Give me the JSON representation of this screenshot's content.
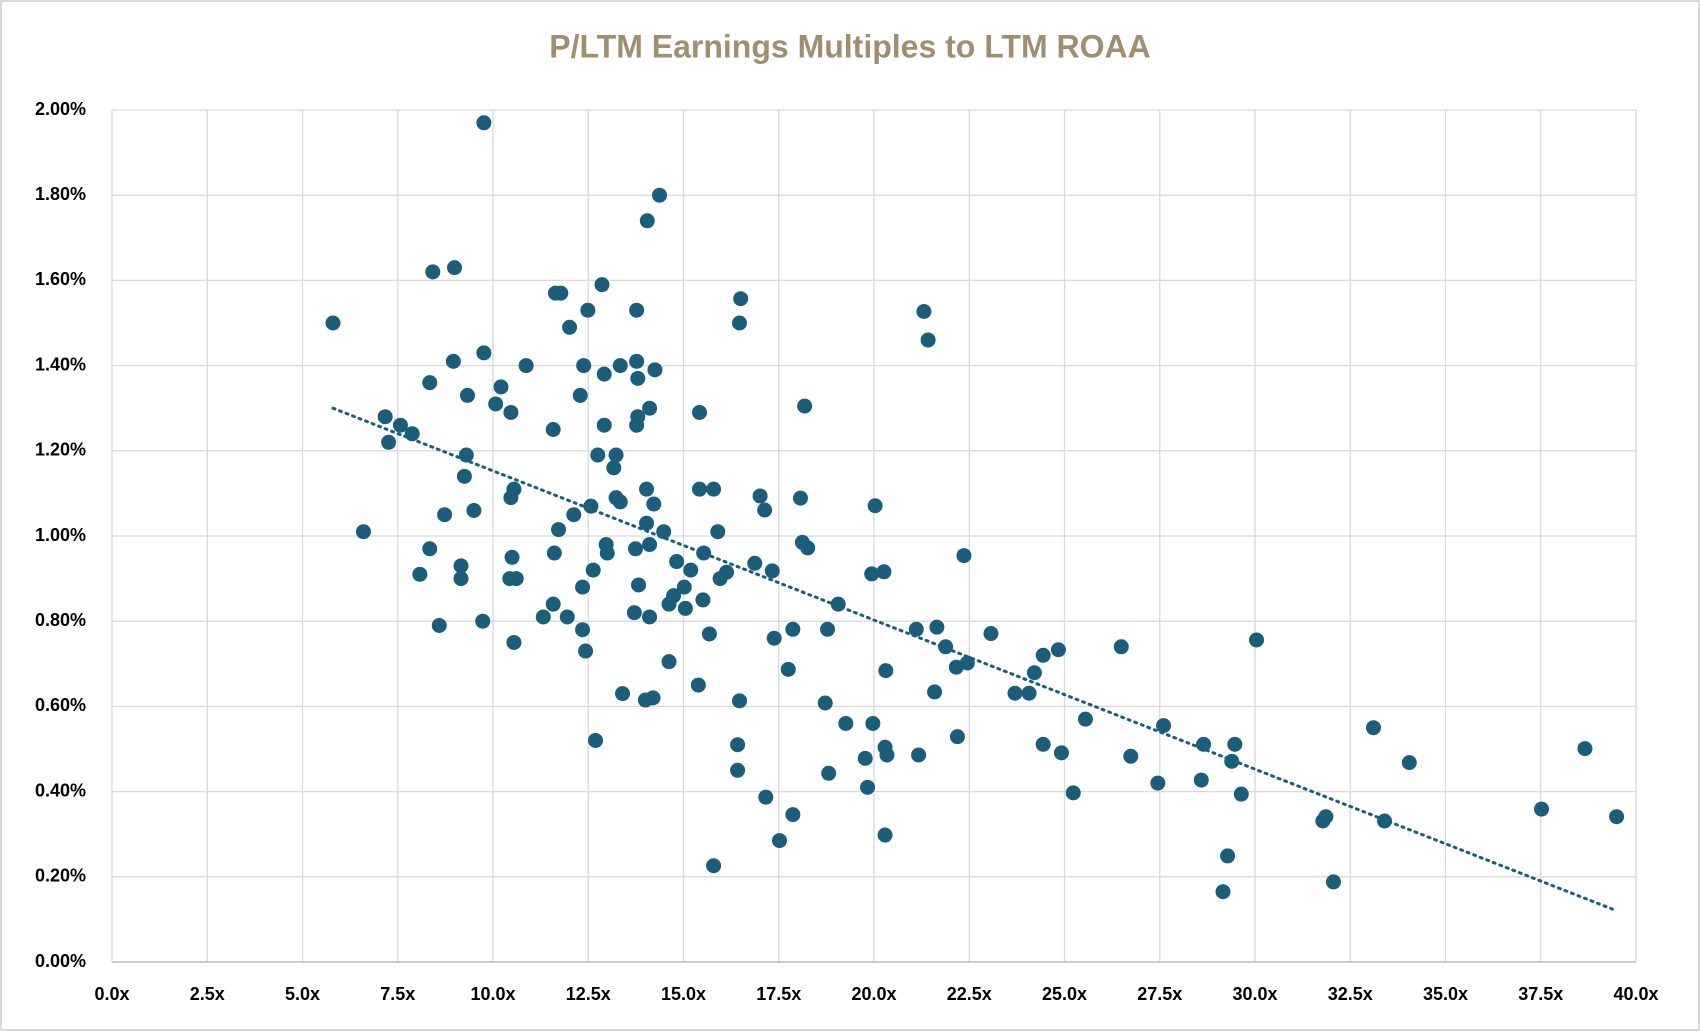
{
  "chart_data": {
    "type": "scatter",
    "title": "P/LTM Earnings Multiples to LTM ROAA",
    "xlim": [
      0,
      40
    ],
    "ylim": [
      0,
      2
    ],
    "grid": true,
    "xticks": [
      {
        "value": 0,
        "label": "0.0x"
      },
      {
        "value": 2.5,
        "label": "2.5x"
      },
      {
        "value": 5,
        "label": "5.0x"
      },
      {
        "value": 7.5,
        "label": "7.5x"
      },
      {
        "value": 10,
        "label": "10.0x"
      },
      {
        "value": 12.5,
        "label": "12.5x"
      },
      {
        "value": 15,
        "label": "15.0x"
      },
      {
        "value": 17.5,
        "label": "17.5x"
      },
      {
        "value": 20,
        "label": "20.0x"
      },
      {
        "value": 22.5,
        "label": "22.5x"
      },
      {
        "value": 25,
        "label": "25.0x"
      },
      {
        "value": 27.5,
        "label": "27.5x"
      },
      {
        "value": 30,
        "label": "30.0x"
      },
      {
        "value": 32.5,
        "label": "32.5x"
      },
      {
        "value": 35,
        "label": "35.0x"
      },
      {
        "value": 37.5,
        "label": "37.5x"
      },
      {
        "value": 40,
        "label": "40.0x"
      }
    ],
    "yticks": [
      {
        "value": 0,
        "label": "0.00%"
      },
      {
        "value": 0.2,
        "label": "0.20%"
      },
      {
        "value": 0.4,
        "label": "0.40%"
      },
      {
        "value": 0.6,
        "label": "0.60%"
      },
      {
        "value": 0.8,
        "label": "0.80%"
      },
      {
        "value": 1.0,
        "label": "1.00%"
      },
      {
        "value": 1.2,
        "label": "1.20%"
      },
      {
        "value": 1.4,
        "label": "1.40%"
      },
      {
        "value": 1.6,
        "label": "1.60%"
      },
      {
        "value": 1.8,
        "label": "1.80%"
      },
      {
        "value": 2.0,
        "label": "2.00%"
      }
    ],
    "series": [
      {
        "color": "#1b5e7b",
        "x": [
          5.8,
          6.6,
          7.17,
          7.26,
          7.57,
          7.88,
          8.08,
          8.34,
          8.34,
          8.42,
          8.59,
          8.73,
          8.96,
          8.99,
          9.16,
          9.16,
          9.25,
          9.3,
          9.33,
          9.5,
          9.73,
          9.76,
          9.76,
          10.07,
          10.21,
          10.44,
          10.47,
          10.47,
          10.5,
          10.55,
          10.55,
          10.61,
          10.87,
          11.32,
          11.58,
          11.61,
          11.58,
          11.64,
          11.78,
          11.72,
          11.95,
          12.01,
          12.12,
          12.29,
          12.35,
          12.35,
          12.38,
          12.43,
          12.49,
          12.57,
          12.63,
          12.69,
          12.75,
          12.86,
          12.92,
          12.92,
          12.97,
          13.0,
          13.17,
          13.23,
          13.23,
          13.34,
          13.34,
          13.4,
          13.71,
          13.74,
          13.77,
          13.77,
          13.8,
          13.8,
          13.77,
          13.82,
          14.0,
          14.03,
          14.03,
          14.05,
          14.11,
          14.11,
          14.11,
          14.2,
          14.22,
          14.25,
          14.37,
          14.48,
          14.62,
          14.62,
          14.74,
          14.82,
          15.02,
          15.05,
          15.19,
          15.39,
          15.42,
          15.42,
          15.51,
          15.53,
          15.68,
          15.79,
          15.79,
          15.9,
          15.96,
          16.13,
          16.42,
          16.42,
          16.47,
          16.5,
          16.47,
          16.87,
          17.01,
          17.13,
          17.16,
          17.33,
          17.38,
          17.52,
          17.75,
          17.87,
          17.87,
          18.07,
          18.12,
          18.18,
          18.26,
          18.72,
          18.78,
          18.81,
          19.06,
          19.26,
          19.77,
          19.83,
          19.97,
          19.94,
          20.03,
          20.26,
          20.29,
          20.34,
          20.29,
          20.31,
          21.11,
          21.17,
          21.31,
          21.42,
          21.59,
          21.65,
          21.88,
          22.16,
          22.19,
          22.36,
          22.45,
          23.07,
          23.7,
          24.07,
          24.21,
          24.44,
          24.44,
          24.84,
          24.92,
          25.23,
          25.55,
          26.49,
          26.74,
          27.45,
          27.6,
          28.59,
          28.65,
          29.16,
          29.28,
          29.39,
          29.47,
          29.64,
          30.04,
          31.78,
          31.86,
          32.06,
          33.11,
          33.4,
          34.05,
          37.52,
          38.66,
          39.49
        ],
        "y": [
          1.5,
          1.01,
          1.28,
          1.22,
          1.26,
          1.24,
          0.91,
          1.36,
          0.97,
          1.62,
          0.79,
          1.05,
          1.41,
          1.63,
          0.93,
          0.9,
          1.14,
          1.19,
          1.33,
          1.06,
          0.8,
          1.43,
          1.97,
          1.31,
          1.35,
          0.9,
          1.29,
          1.09,
          0.95,
          1.11,
          0.75,
          0.9,
          1.4,
          0.81,
          1.25,
          0.96,
          0.84,
          1.57,
          1.57,
          1.015,
          0.81,
          1.49,
          1.05,
          1.33,
          0.88,
          0.78,
          1.4,
          0.73,
          1.53,
          1.07,
          0.92,
          0.52,
          1.19,
          1.59,
          1.38,
          1.26,
          0.98,
          0.96,
          1.16,
          1.19,
          1.09,
          1.4,
          1.08,
          0.63,
          0.82,
          0.97,
          1.53,
          1.41,
          1.37,
          1.28,
          1.26,
          0.885,
          0.615,
          1.11,
          1.03,
          1.74,
          0.98,
          1.3,
          0.81,
          0.62,
          1.075,
          1.39,
          1.8,
          1.01,
          0.705,
          0.84,
          0.86,
          0.94,
          0.88,
          0.83,
          0.92,
          0.65,
          1.29,
          1.11,
          0.85,
          0.96,
          0.77,
          0.226,
          1.11,
          1.01,
          0.9,
          0.915,
          0.51,
          0.45,
          1.5,
          1.557,
          0.613,
          0.936,
          1.094,
          1.061,
          0.387,
          0.918,
          0.76,
          0.285,
          0.687,
          0.781,
          0.346,
          1.089,
          0.985,
          1.305,
          0.972,
          0.608,
          0.781,
          0.443,
          0.84,
          0.56,
          0.478,
          0.41,
          0.56,
          0.911,
          1.071,
          0.916,
          0.504,
          0.486,
          0.298,
          0.684,
          0.781,
          0.486,
          1.527,
          1.46,
          0.634,
          0.786,
          0.74,
          0.692,
          0.529,
          0.954,
          0.702,
          0.771,
          0.631,
          0.631,
          0.679,
          0.511,
          0.72,
          0.733,
          0.491,
          0.397,
          0.57,
          0.74,
          0.483,
          0.42,
          0.555,
          0.427,
          0.511,
          0.165,
          0.249,
          0.471,
          0.511,
          0.394,
          0.756,
          0.331,
          0.341,
          0.188,
          0.55,
          0.331,
          0.468,
          0.359,
          0.501,
          0.341
        ]
      }
    ],
    "trendline": {
      "color": "#1b5e7b",
      "style": "dotted",
      "x": [
        5.8,
        39.5
      ],
      "y": [
        1.3,
        0.12
      ]
    }
  }
}
